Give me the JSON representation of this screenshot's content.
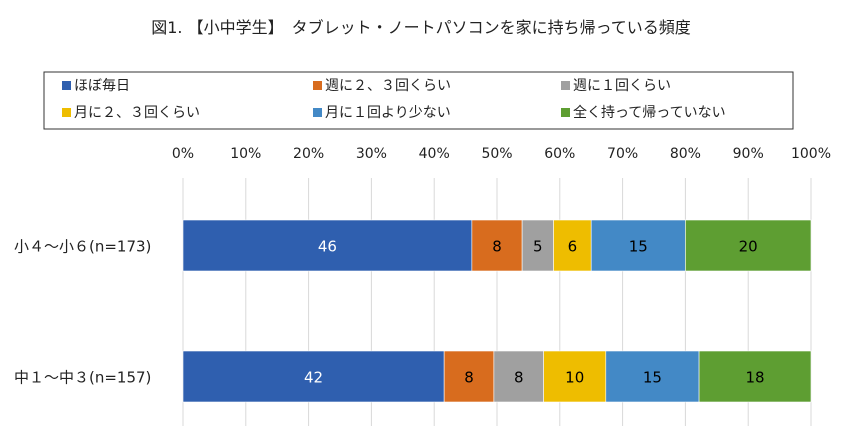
{
  "chart_data": {
    "type": "bar",
    "orientation": "horizontal",
    "stacked": "percent",
    "title": "図1. 【小中学生】　タブレット・ノートパソコンを家に持ち帰っている頻度",
    "categories": [
      "小４～小６(n=173)",
      "中１～中３(n=157)"
    ],
    "xlim": [
      0,
      100
    ],
    "x_ticks": [
      "0%",
      "10%",
      "20%",
      "30%",
      "40%",
      "50%",
      "60%",
      "70%",
      "80%",
      "90%",
      "100%"
    ],
    "grid": true,
    "legend_position": "top",
    "series": [
      {
        "name": "ほぼ毎日",
        "color": "#2f5faf",
        "values": [
          46,
          42
        ],
        "label_color": "#ffffff"
      },
      {
        "name": "週に２、３回くらい",
        "color": "#d86c1e",
        "values": [
          8,
          8
        ],
        "label_color": "#000000"
      },
      {
        "name": "週に１回くらい",
        "color": "#a0a0a0",
        "values": [
          5,
          8
        ],
        "label_color": "#000000"
      },
      {
        "name": "月に２、３回くらい",
        "color": "#eebd00",
        "values": [
          6,
          10
        ],
        "label_color": "#000000"
      },
      {
        "name": "月に１回より少ない",
        "color": "#4389c6",
        "values": [
          15,
          15
        ],
        "label_color": "#000000"
      },
      {
        "name": "全く持って帰っていない",
        "color": "#5e9e32",
        "values": [
          20,
          18
        ],
        "label_color": "#000000"
      }
    ]
  }
}
